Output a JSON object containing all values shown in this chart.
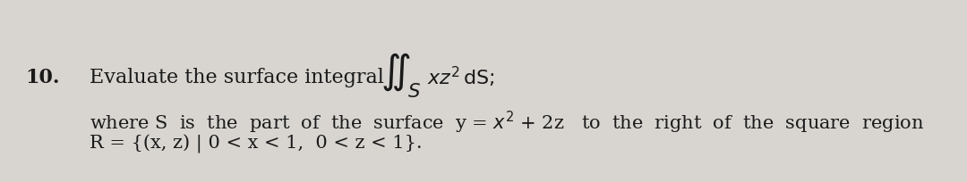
{
  "background_color": "#d8d5d0",
  "number": "10.",
  "text_color": "#1a1a1a",
  "font_size": 16,
  "line1_prefix": "Evaluate the surface integral",
  "line1_suffix": "  xz",
  "line1_exp": "2",
  "line1_end": " dS;",
  "line2": "where S  is  the  part  of  the  surface  y = x",
  "line2_exp": "2",
  "line2_mid": " + 2z   to  the  right  of  the  square  region",
  "line3": "R = {(x, z) | 0 < x < 1,  0 < z < 1}."
}
